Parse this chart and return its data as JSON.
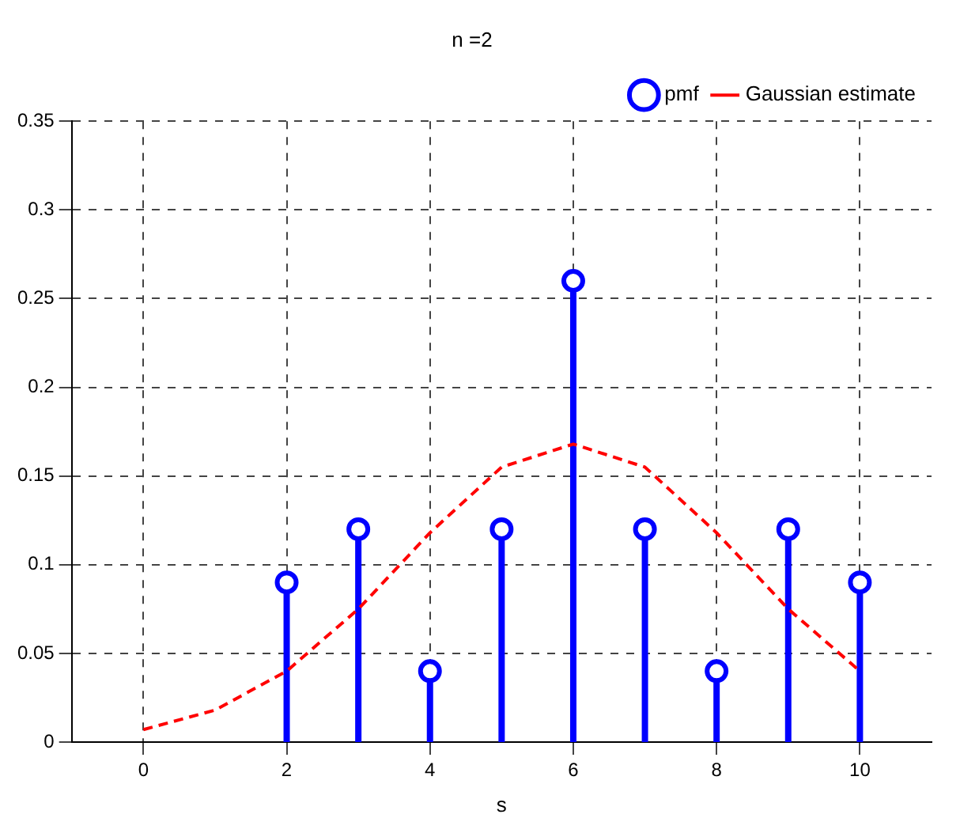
{
  "chart_data": {
    "type": "lollipop",
    "title": "n =2",
    "xlabel": "s",
    "xlim": [
      -1,
      11
    ],
    "xticks": [
      0,
      2,
      4,
      6,
      8,
      10
    ],
    "ylim": [
      0,
      0.35
    ],
    "yticks": [
      0,
      0.05,
      {
        "value": 0.1,
        "label": "0.1"
      },
      0.15,
      {
        "value": 0.2,
        "label": "0.2"
      },
      0.25,
      {
        "value": 0.3,
        "label": "0.3"
      },
      0.35
    ],
    "grid": true,
    "legend": "top right",
    "series": [
      {
        "name": "pmf",
        "type": "lollipop",
        "color": "#0000ff",
        "marker": "circle",
        "x": [
          2,
          3,
          4,
          5,
          6,
          7,
          8,
          9,
          10
        ],
        "values": [
          0.09,
          0.12,
          0.04,
          0.12,
          0.26,
          0.12,
          0.04,
          0.12,
          0.09
        ]
      },
      {
        "name": "Gaussian estimate",
        "type": "line",
        "color": "#ff0000",
        "line_style": "dashed",
        "marker": "none",
        "x": [
          0,
          1,
          2,
          3,
          4,
          5,
          6,
          7,
          8,
          9,
          10
        ],
        "values": [
          0.007,
          0.018,
          0.04,
          0.075,
          0.118,
          0.155,
          0.168,
          0.155,
          0.118,
          0.075,
          0.04
        ]
      }
    ]
  }
}
